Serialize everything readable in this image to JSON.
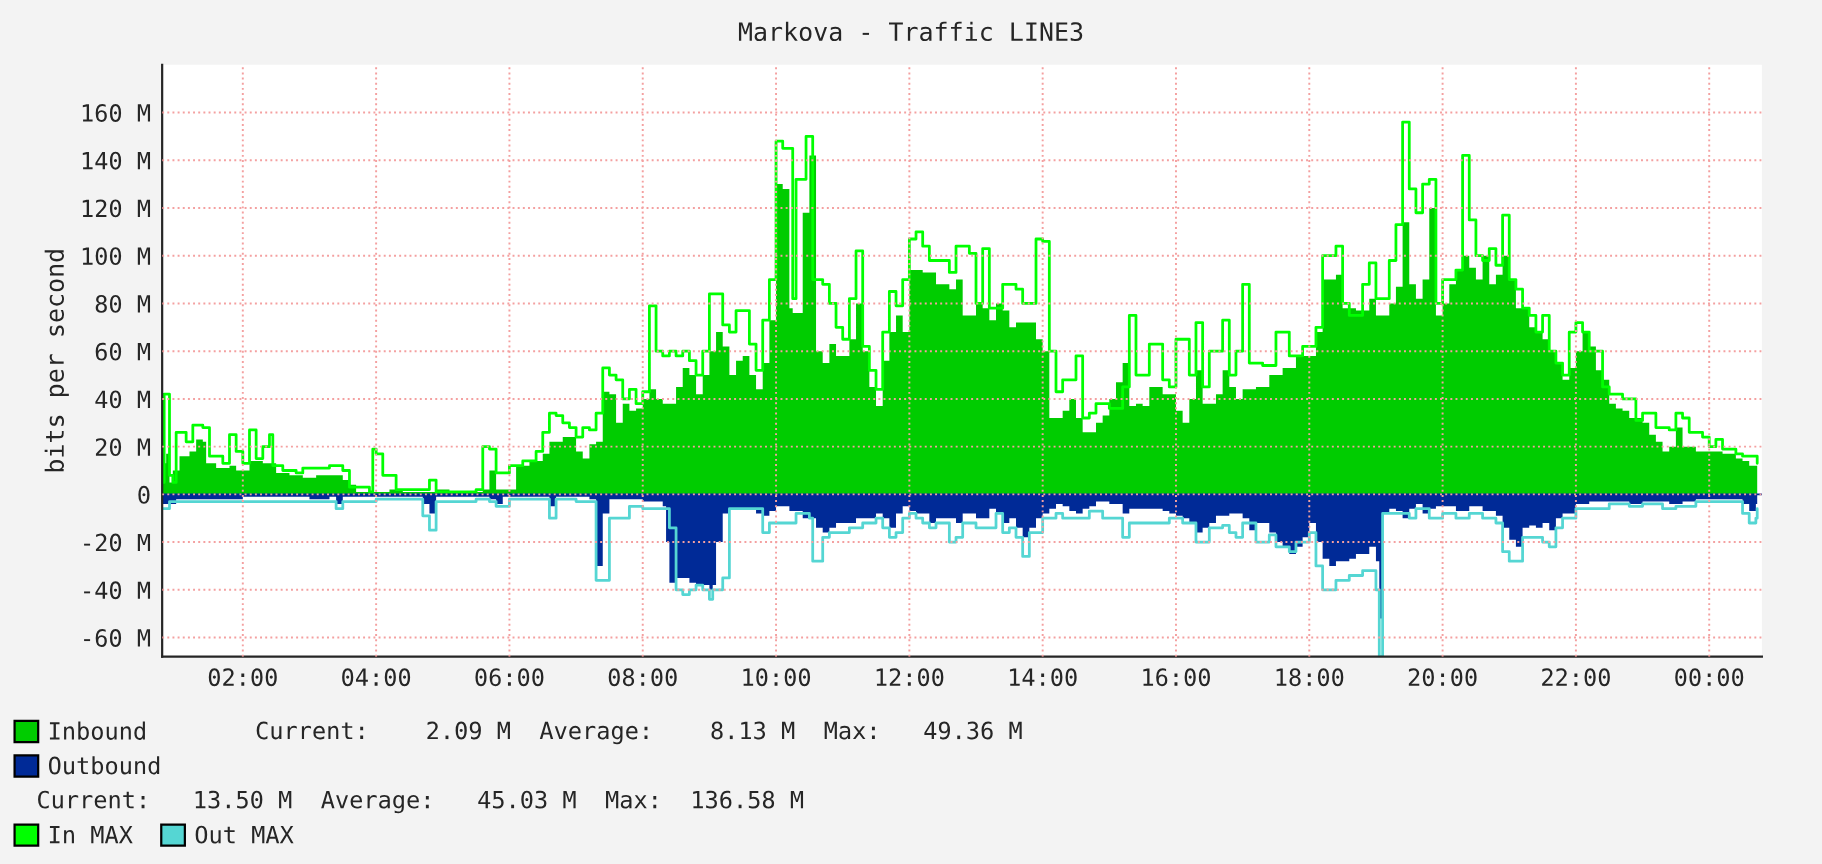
{
  "chart_data": {
    "type": "area",
    "title": "Markova - Traffic LINE3",
    "ylabel": "bits per second",
    "xlim": [
      0.79,
      24.79
    ],
    "xticks": [
      {
        "value": 2,
        "label": "02:00"
      },
      {
        "value": 4,
        "label": "04:00"
      },
      {
        "value": 6,
        "label": "06:00"
      },
      {
        "value": 8,
        "label": "08:00"
      },
      {
        "value": 10,
        "label": "10:00"
      },
      {
        "value": 12,
        "label": "12:00"
      },
      {
        "value": 14,
        "label": "14:00"
      },
      {
        "value": 16,
        "label": "16:00"
      },
      {
        "value": 18,
        "label": "18:00"
      },
      {
        "value": 20,
        "label": "20:00"
      },
      {
        "value": 22,
        "label": "22:00"
      },
      {
        "value": 24,
        "label": "00:00"
      }
    ],
    "ylim": [
      -68,
      180
    ],
    "yticks": [
      {
        "value": -60,
        "label": "-60 M"
      },
      {
        "value": -40,
        "label": "-40 M"
      },
      {
        "value": -20,
        "label": "-20 M"
      },
      0,
      {
        "value": 20,
        "label": "20 M"
      },
      {
        "value": 40,
        "label": "40 M"
      },
      {
        "value": 60,
        "label": "60 M"
      },
      {
        "value": 80,
        "label": "80 M"
      },
      {
        "value": 100,
        "label": "100 M"
      },
      {
        "value": 120,
        "label": "120 M"
      },
      {
        "value": 140,
        "label": "140 M"
      },
      {
        "value": 160,
        "label": "160 M"
      }
    ],
    "grid": true,
    "legend": "bottom",
    "annotations": [
      "Current:    2.09 M  Average:    8.13 M  Max:   49.36 M",
      "Current:   13.50 M  Average:   45.03 M  Max:  136.58 M"
    ],
    "series": [
      {
        "name": "Inbound",
        "color": "#00cc00",
        "x": [
          0.79,
          0.85,
          0.9,
          0.95,
          1.05,
          1.2,
          1.3,
          1.4,
          1.45,
          1.6,
          1.8,
          1.9,
          2.1,
          2.3,
          2.5,
          2.7,
          2.9,
          3.1,
          3.3,
          3.5,
          3.6,
          3.7,
          3.9,
          4.0,
          4.2,
          4.4,
          4.6,
          4.9,
          5.1,
          5.4,
          5.6,
          5.7,
          5.8,
          6.0,
          6.1,
          6.3,
          6.5,
          6.6,
          6.8,
          7.0,
          7.1,
          7.2,
          7.3,
          7.4,
          7.5,
          7.6,
          7.7,
          7.8,
          7.9,
          8.0,
          8.1,
          8.2,
          8.3,
          8.5,
          8.6,
          8.7,
          8.8,
          8.9,
          9.0,
          9.1,
          9.2,
          9.3,
          9.4,
          9.5,
          9.6,
          9.7,
          9.8,
          9.9,
          10.0,
          10.1,
          10.2,
          10.25,
          10.4,
          10.5,
          10.6,
          10.7,
          10.8,
          10.9,
          11.0,
          11.1,
          11.2,
          11.3,
          11.4,
          11.5,
          11.6,
          11.7,
          11.8,
          11.9,
          12.0,
          12.2,
          12.4,
          12.6,
          12.7,
          12.8,
          13.0,
          13.1,
          13.2,
          13.3,
          13.4,
          13.5,
          13.6,
          13.8,
          13.9,
          14.0,
          14.1,
          14.2,
          14.3,
          14.4,
          14.5,
          14.6,
          14.7,
          14.8,
          14.9,
          15.0,
          15.1,
          15.2,
          15.3,
          15.4,
          15.5,
          15.6,
          15.8,
          15.9,
          16.0,
          16.1,
          16.2,
          16.3,
          16.4,
          16.6,
          16.7,
          16.8,
          16.9,
          17.0,
          17.2,
          17.4,
          17.6,
          17.8,
          18.1,
          18.2,
          18.4,
          18.5,
          18.7,
          18.9,
          19.0,
          19.2,
          19.3,
          19.4,
          19.5,
          19.6,
          19.7,
          19.8,
          19.9,
          20.0,
          20.1,
          20.2,
          20.3,
          20.4,
          20.5,
          20.6,
          20.7,
          20.8,
          20.9,
          21.0,
          21.1,
          21.2,
          21.3,
          21.4,
          21.5,
          21.6,
          21.7,
          21.8,
          21.9,
          22.0,
          22.1,
          22.2,
          22.3,
          22.4,
          22.5,
          22.6,
          22.7,
          22.8,
          23.0,
          23.1,
          23.2,
          23.3,
          23.4,
          23.5,
          23.6,
          23.8,
          24.0,
          24.2,
          24.4,
          24.5,
          24.6,
          24.72
        ],
        "values": [
          13,
          17,
          5,
          10,
          16,
          18,
          23,
          22,
          13,
          11,
          12,
          10,
          14,
          13,
          9,
          8,
          7,
          8,
          8,
          6,
          4,
          1,
          1,
          1,
          2,
          1,
          1,
          2,
          1,
          1,
          2,
          10,
          2,
          2,
          12,
          14,
          17,
          22,
          24,
          18,
          15,
          21,
          22,
          43,
          42,
          30,
          38,
          35,
          36,
          40,
          44,
          40,
          38,
          45,
          53,
          50,
          42,
          50,
          60,
          68,
          62,
          50,
          56,
          58,
          50,
          44,
          55,
          73,
          130,
          128,
          78,
          76,
          118,
          142,
          60,
          55,
          63,
          58,
          58,
          65,
          80,
          60,
          45,
          37,
          56,
          68,
          75,
          68,
          94,
          93,
          88,
          86,
          90,
          75,
          80,
          78,
          73,
          80,
          77,
          70,
          72,
          72,
          65,
          60,
          32,
          32,
          35,
          40,
          32,
          26,
          26,
          30,
          33,
          40,
          47,
          55,
          37,
          38,
          37,
          45,
          42,
          42,
          35,
          30,
          40,
          52,
          38,
          42,
          52,
          45,
          40,
          44,
          45,
          50,
          53,
          58,
          68,
          90,
          92,
          78,
          77,
          82,
          75,
          80,
          87,
          114,
          88,
          82,
          90,
          120,
          75,
          80,
          88,
          94,
          100,
          95,
          90,
          100,
          88,
          92,
          100,
          90,
          78,
          78,
          70,
          68,
          65,
          60,
          55,
          48,
          53,
          60,
          68,
          62,
          52,
          48,
          38,
          36,
          35,
          32,
          30,
          25,
          22,
          18,
          20,
          28,
          20,
          18,
          18,
          17,
          15,
          14,
          12,
          13
        ]
      },
      {
        "name": "Outbound",
        "color": "#002a97",
        "x": [
          0.79,
          1.0,
          1.2,
          1.5,
          2.0,
          2.5,
          3.0,
          3.3,
          3.4,
          3.5,
          4.0,
          4.5,
          4.7,
          4.8,
          4.9,
          5.5,
          5.7,
          5.8,
          5.9,
          6.2,
          6.5,
          6.6,
          6.7,
          7.0,
          7.2,
          7.3,
          7.4,
          7.5,
          8.0,
          8.3,
          8.35,
          8.4,
          8.5,
          8.6,
          8.7,
          8.8,
          8.9,
          9.0,
          9.05,
          9.1,
          9.2,
          9.3,
          9.5,
          9.7,
          9.8,
          9.9,
          10.0,
          10.2,
          10.4,
          10.5,
          10.6,
          10.7,
          10.8,
          10.9,
          11.0,
          11.2,
          11.4,
          11.5,
          11.6,
          11.7,
          11.8,
          11.9,
          12.0,
          12.1,
          12.2,
          12.3,
          12.4,
          12.6,
          12.7,
          12.8,
          13.0,
          13.2,
          13.3,
          13.4,
          13.5,
          13.6,
          13.7,
          13.8,
          13.9,
          14.0,
          14.1,
          14.2,
          14.3,
          14.4,
          14.5,
          14.6,
          14.7,
          14.8,
          15.0,
          15.2,
          15.3,
          15.4,
          15.6,
          15.8,
          15.9,
          16.0,
          16.1,
          16.2,
          16.3,
          16.4,
          16.5,
          16.6,
          16.8,
          17.0,
          17.1,
          17.2,
          17.4,
          17.5,
          17.6,
          17.7,
          17.8,
          17.9,
          18.0,
          18.1,
          18.2,
          18.3,
          18.4,
          18.5,
          18.6,
          18.7,
          18.8,
          18.9,
          19.0,
          19.05,
          19.1,
          19.2,
          19.3,
          19.4,
          19.5,
          19.6,
          19.7,
          19.8,
          19.9,
          20.0,
          20.2,
          20.4,
          20.6,
          20.8,
          20.9,
          21.0,
          21.1,
          21.2,
          21.3,
          21.4,
          21.5,
          21.6,
          21.7,
          21.8,
          22.0,
          22.2,
          22.4,
          22.6,
          22.8,
          23.0,
          23.2,
          23.4,
          23.6,
          23.8,
          24.0,
          24.2,
          24.4,
          24.5,
          24.6,
          24.7,
          24.72
        ],
        "values": [
          -4,
          -2,
          -2,
          -2,
          -1,
          -1,
          -2,
          -1,
          -4,
          -1,
          -1,
          -1,
          -4,
          -8,
          -1,
          -1,
          -2,
          -4,
          -1,
          -1,
          -1,
          -5,
          -1,
          -1,
          -2,
          -30,
          -8,
          -2,
          -3,
          -5,
          -20,
          -37,
          -35,
          -35,
          -37,
          -38,
          -38,
          -40,
          -38,
          -20,
          -8,
          -6,
          -6,
          -8,
          -9,
          -7,
          -5,
          -7,
          -10,
          -10,
          -14,
          -16,
          -14,
          -12,
          -12,
          -10,
          -10,
          -8,
          -10,
          -14,
          -8,
          -5,
          -7,
          -8,
          -8,
          -12,
          -10,
          -10,
          -12,
          -8,
          -10,
          -6,
          -8,
          -12,
          -10,
          -14,
          -18,
          -14,
          -10,
          -8,
          -6,
          -4,
          -5,
          -7,
          -8,
          -6,
          -5,
          -3,
          -4,
          -8,
          -6,
          -6,
          -6,
          -7,
          -8,
          -9,
          -10,
          -12,
          -16,
          -14,
          -12,
          -9,
          -8,
          -10,
          -15,
          -12,
          -16,
          -20,
          -22,
          -25,
          -22,
          -18,
          -12,
          -20,
          -27,
          -30,
          -28,
          -28,
          -27,
          -25,
          -25,
          -22,
          -28,
          -52,
          -8,
          -6,
          -7,
          -10,
          -6,
          -4,
          -8,
          -6,
          -5,
          -5,
          -7,
          -5,
          -7,
          -9,
          -14,
          -19,
          -22,
          -14,
          -13,
          -14,
          -12,
          -15,
          -10,
          -8,
          -4,
          -3,
          -3,
          -3,
          -4,
          -3,
          -3,
          -4,
          -3,
          -2,
          -2,
          -2,
          -2,
          -4,
          -7,
          -4,
          -3
        ]
      },
      {
        "name": "In MAX",
        "type": "step",
        "color": "#00ff00",
        "x": [
          0.79,
          0.82,
          0.87,
          0.9,
          0.95,
          1.0,
          1.1,
          1.15,
          1.25,
          1.4,
          1.5,
          1.7,
          1.8,
          1.9,
          2.0,
          2.1,
          2.2,
          2.3,
          2.4,
          2.45,
          2.6,
          2.8,
          2.9,
          3.1,
          3.3,
          3.5,
          3.6,
          3.9,
          3.95,
          4.0,
          4.1,
          4.3,
          4.8,
          4.9,
          5.2,
          5.5,
          5.6,
          5.7,
          5.8,
          6.0,
          6.2,
          6.4,
          6.5,
          6.6,
          6.7,
          6.8,
          6.9,
          7.0,
          7.1,
          7.2,
          7.3,
          7.4,
          7.5,
          7.6,
          7.7,
          7.8,
          7.9,
          8.0,
          8.1,
          8.2,
          8.3,
          8.4,
          8.5,
          8.6,
          8.7,
          8.8,
          8.9,
          9.0,
          9.1,
          9.2,
          9.3,
          9.4,
          9.5,
          9.6,
          9.7,
          9.8,
          9.9,
          10.0,
          10.1,
          10.25,
          10.3,
          10.45,
          10.5,
          10.55,
          10.7,
          10.8,
          10.9,
          11.0,
          11.1,
          11.2,
          11.3,
          11.4,
          11.5,
          11.6,
          11.7,
          11.8,
          11.9,
          12.0,
          12.1,
          12.2,
          12.3,
          12.4,
          12.6,
          12.7,
          12.9,
          13.0,
          13.1,
          13.2,
          13.4,
          13.6,
          13.7,
          13.9,
          14.0,
          14.1,
          14.2,
          14.3,
          14.5,
          14.6,
          14.7,
          14.8,
          15.0,
          15.2,
          15.3,
          15.4,
          15.6,
          15.8,
          15.9,
          16.0,
          16.2,
          16.3,
          16.4,
          16.5,
          16.7,
          16.8,
          16.9,
          17.0,
          17.1,
          17.3,
          17.5,
          17.7,
          17.9,
          18.1,
          18.2,
          18.4,
          18.5,
          18.6,
          18.8,
          18.9,
          19.0,
          19.2,
          19.3,
          19.4,
          19.5,
          19.6,
          19.7,
          19.8,
          19.9,
          20.0,
          20.2,
          20.3,
          20.4,
          20.5,
          20.6,
          20.7,
          20.8,
          20.9,
          21.0,
          21.1,
          21.2,
          21.3,
          21.4,
          21.5,
          21.6,
          21.7,
          21.8,
          21.9,
          22.0,
          22.1,
          22.2,
          22.3,
          22.4,
          22.5,
          22.7,
          22.9,
          23.0,
          23.2,
          23.4,
          23.5,
          23.6,
          23.7,
          23.9,
          24.0,
          24.1,
          24.2,
          24.4,
          24.5,
          24.72
        ],
        "values": [
          5,
          42,
          42,
          8,
          5,
          26,
          26,
          22,
          29,
          28,
          16,
          13,
          25,
          18,
          13,
          27,
          15,
          20,
          25,
          12,
          10,
          9,
          11,
          11,
          12,
          10,
          3,
          1,
          19,
          17,
          8,
          2,
          6,
          1,
          1,
          2,
          20,
          19,
          9,
          12,
          14,
          18,
          26,
          34,
          33,
          30,
          28,
          24,
          28,
          27,
          34,
          53,
          50,
          48,
          40,
          44,
          38,
          43,
          79,
          60,
          58,
          60,
          58,
          60,
          56,
          50,
          60,
          84,
          84,
          71,
          68,
          77,
          77,
          63,
          52,
          73,
          90,
          148,
          145,
          82,
          132,
          150,
          150,
          90,
          88,
          80,
          70,
          65,
          82,
          102,
          62,
          52,
          44,
          68,
          85,
          79,
          90,
          107,
          110,
          104,
          98,
          98,
          93,
          104,
          101,
          80,
          103,
          78,
          88,
          86,
          80,
          107,
          106,
          60,
          43,
          48,
          58,
          32,
          34,
          38,
          36,
          45,
          75,
          50,
          63,
          48,
          45,
          65,
          50,
          72,
          45,
          60,
          73,
          50,
          60,
          88,
          55,
          54,
          68,
          58,
          62,
          70,
          100,
          104,
          80,
          75,
          88,
          97,
          82,
          98,
          113,
          156,
          128,
          118,
          130,
          132,
          80,
          90,
          94,
          142,
          115,
          100,
          98,
          103,
          96,
          117,
          90,
          86,
          78,
          75,
          68,
          75,
          60,
          55,
          50,
          68,
          72,
          68,
          60,
          60,
          45,
          42,
          40,
          31,
          34,
          28,
          27,
          34,
          32,
          26,
          24,
          20,
          23,
          19,
          17,
          16,
          13
        ]
      },
      {
        "name": "Out MAX",
        "type": "step",
        "color": "#55d6d3",
        "x": [
          0.79,
          0.85,
          0.9,
          1.5,
          2.0,
          2.5,
          3.0,
          3.3,
          3.4,
          3.5,
          4.0,
          4.5,
          4.7,
          4.8,
          4.9,
          5.5,
          5.7,
          5.8,
          6.0,
          6.5,
          6.6,
          6.7,
          7.0,
          7.3,
          7.4,
          7.5,
          7.8,
          8.0,
          8.3,
          8.4,
          8.5,
          8.6,
          8.7,
          8.8,
          8.9,
          9.0,
          9.05,
          9.2,
          9.3,
          9.5,
          9.8,
          9.9,
          10.0,
          10.3,
          10.5,
          10.55,
          10.6,
          10.7,
          10.8,
          10.9,
          11.1,
          11.3,
          11.5,
          11.6,
          11.7,
          11.8,
          11.9,
          12.0,
          12.1,
          12.2,
          12.3,
          12.4,
          12.6,
          12.7,
          12.8,
          13.0,
          13.2,
          13.3,
          13.4,
          13.5,
          13.6,
          13.7,
          13.8,
          14.0,
          14.2,
          14.3,
          14.5,
          14.7,
          14.9,
          15.1,
          15.2,
          15.3,
          15.4,
          15.6,
          15.9,
          16.1,
          16.3,
          16.5,
          16.7,
          16.8,
          16.9,
          17.0,
          17.2,
          17.4,
          17.5,
          17.6,
          17.7,
          17.8,
          18.0,
          18.1,
          18.2,
          18.3,
          18.4,
          18.6,
          18.8,
          19.0,
          19.05,
          19.1,
          19.3,
          19.5,
          19.6,
          19.8,
          20.0,
          20.2,
          20.4,
          20.6,
          20.8,
          20.9,
          21.0,
          21.1,
          21.2,
          21.4,
          21.5,
          21.6,
          21.7,
          21.8,
          22.0,
          22.3,
          22.5,
          22.8,
          23.0,
          23.3,
          23.5,
          23.8,
          24.0,
          24.4,
          24.5,
          24.6,
          24.7,
          24.72
        ],
        "values": [
          -6,
          -6,
          -3,
          -3,
          -3,
          -3,
          -3,
          -3,
          -6,
          -3,
          -2,
          -2,
          -9,
          -15,
          -3,
          -2,
          -3,
          -5,
          -2,
          -2,
          -10,
          -2,
          -3,
          -36,
          -36,
          -10,
          -5,
          -6,
          -6,
          -14,
          -40,
          -42,
          -40,
          -38,
          -40,
          -44,
          -40,
          -35,
          -6,
          -6,
          -16,
          -12,
          -12,
          -8,
          -10,
          -28,
          -28,
          -18,
          -16,
          -16,
          -14,
          -12,
          -10,
          -14,
          -18,
          -16,
          -10,
          -8,
          -10,
          -12,
          -14,
          -12,
          -20,
          -18,
          -12,
          -14,
          -14,
          -8,
          -16,
          -14,
          -18,
          -26,
          -16,
          -10,
          -8,
          -10,
          -10,
          -7,
          -10,
          -10,
          -18,
          -12,
          -12,
          -12,
          -10,
          -12,
          -20,
          -14,
          -13,
          -16,
          -18,
          -12,
          -20,
          -17,
          -22,
          -22,
          -24,
          -20,
          -16,
          -30,
          -40,
          -40,
          -36,
          -34,
          -32,
          -40,
          -68,
          -8,
          -8,
          -10,
          -6,
          -10,
          -8,
          -10,
          -8,
          -10,
          -12,
          -24,
          -28,
          -28,
          -18,
          -18,
          -20,
          -22,
          -14,
          -10,
          -6,
          -6,
          -4,
          -5,
          -4,
          -6,
          -5,
          -3,
          -3,
          -3,
          -8,
          -12,
          -10,
          -6
        ]
      }
    ]
  }
}
